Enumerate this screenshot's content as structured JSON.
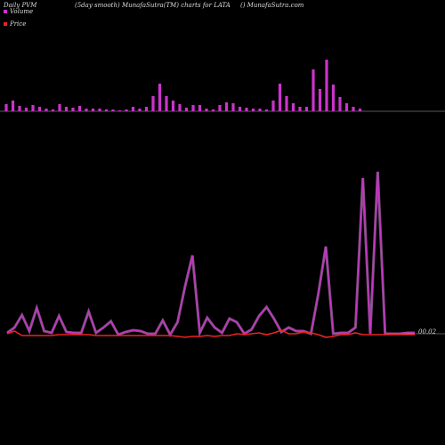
{
  "chart_data": [
    {
      "type": "bar",
      "title": "Daily PVM",
      "subtitle": "(5day smooth) MunafaSutra(TM) charts for LATA",
      "source": "() MunafaSutra.com",
      "series": [
        {
          "name": "Volume",
          "color": "#cc33cc",
          "values": [
            8,
            12,
            6,
            4,
            7,
            5,
            3,
            2,
            8,
            5,
            4,
            6,
            3,
            3,
            3,
            2,
            2,
            1,
            2,
            5,
            3,
            5,
            17,
            31,
            17,
            12,
            8,
            4,
            7,
            7,
            3,
            2,
            7,
            10,
            9,
            5,
            4,
            3,
            3,
            2,
            12,
            31,
            17,
            9,
            5,
            5,
            47,
            25,
            58,
            30,
            16,
            9,
            5,
            3
          ]
        }
      ],
      "ylim": [
        0,
        60
      ]
    },
    {
      "type": "line",
      "value_label": "00.02",
      "series": [
        {
          "name": "Volume",
          "color": "#cc33cc",
          "values": [
            4,
            10,
            24,
            6,
            32,
            6,
            4,
            23,
            5,
            4,
            4,
            28,
            4,
            10,
            17,
            2,
            5,
            7,
            6,
            3,
            3,
            18,
            2,
            16,
            56,
            91,
            4,
            21,
            10,
            4,
            20,
            16,
            3,
            8,
            23,
            33,
            20,
            5,
            10,
            6,
            6,
            3,
            48,
            101,
            3,
            4,
            4,
            10,
            178,
            3,
            185,
            3,
            3,
            3,
            4,
            4
          ]
        },
        {
          "name": "Price",
          "color": "#ee2222",
          "values": [
            3,
            6,
            1,
            1,
            1,
            1,
            1,
            2,
            2,
            2,
            2,
            2,
            1,
            1,
            1,
            1,
            1,
            1,
            1,
            1,
            1,
            1,
            1,
            0,
            -1,
            0,
            0,
            1,
            0,
            1,
            1,
            3,
            2,
            3,
            4,
            2,
            4,
            7,
            3,
            3,
            5,
            4,
            2,
            -1,
            0,
            2,
            2,
            4,
            2,
            2,
            2,
            2,
            2,
            2,
            2,
            2
          ]
        }
      ],
      "ylim": [
        0,
        190
      ]
    }
  ]
}
